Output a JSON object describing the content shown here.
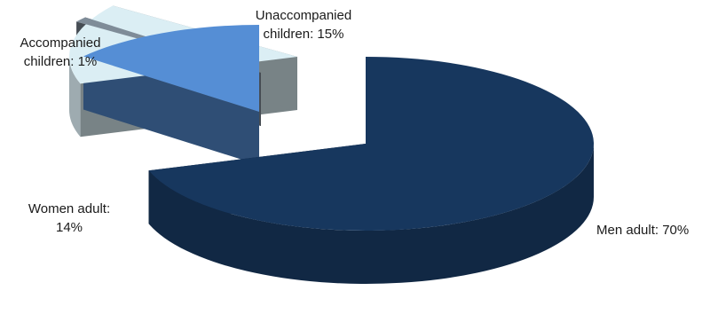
{
  "chart_data": {
    "type": "pie",
    "style": "3d-exploded",
    "title": "",
    "slices": [
      {
        "name": "Men adult",
        "value": 70,
        "color": "#17375e",
        "label_lines": [
          "Men adult: 70%"
        ]
      },
      {
        "name": "Unaccompanied children",
        "value": 15,
        "color": "#dbeef4",
        "label_lines": [
          "Unaccompanied",
          "children: 15%"
        ]
      },
      {
        "name": "Accompanied children",
        "value": 1,
        "color": "#7f8c98",
        "label_lines": [
          "Accompanied",
          "children: 1%"
        ]
      },
      {
        "name": "Women adult",
        "value": 14,
        "color": "#558ed5",
        "label_lines": [
          "Women adult:",
          "14%"
        ]
      }
    ],
    "legend": "none"
  }
}
